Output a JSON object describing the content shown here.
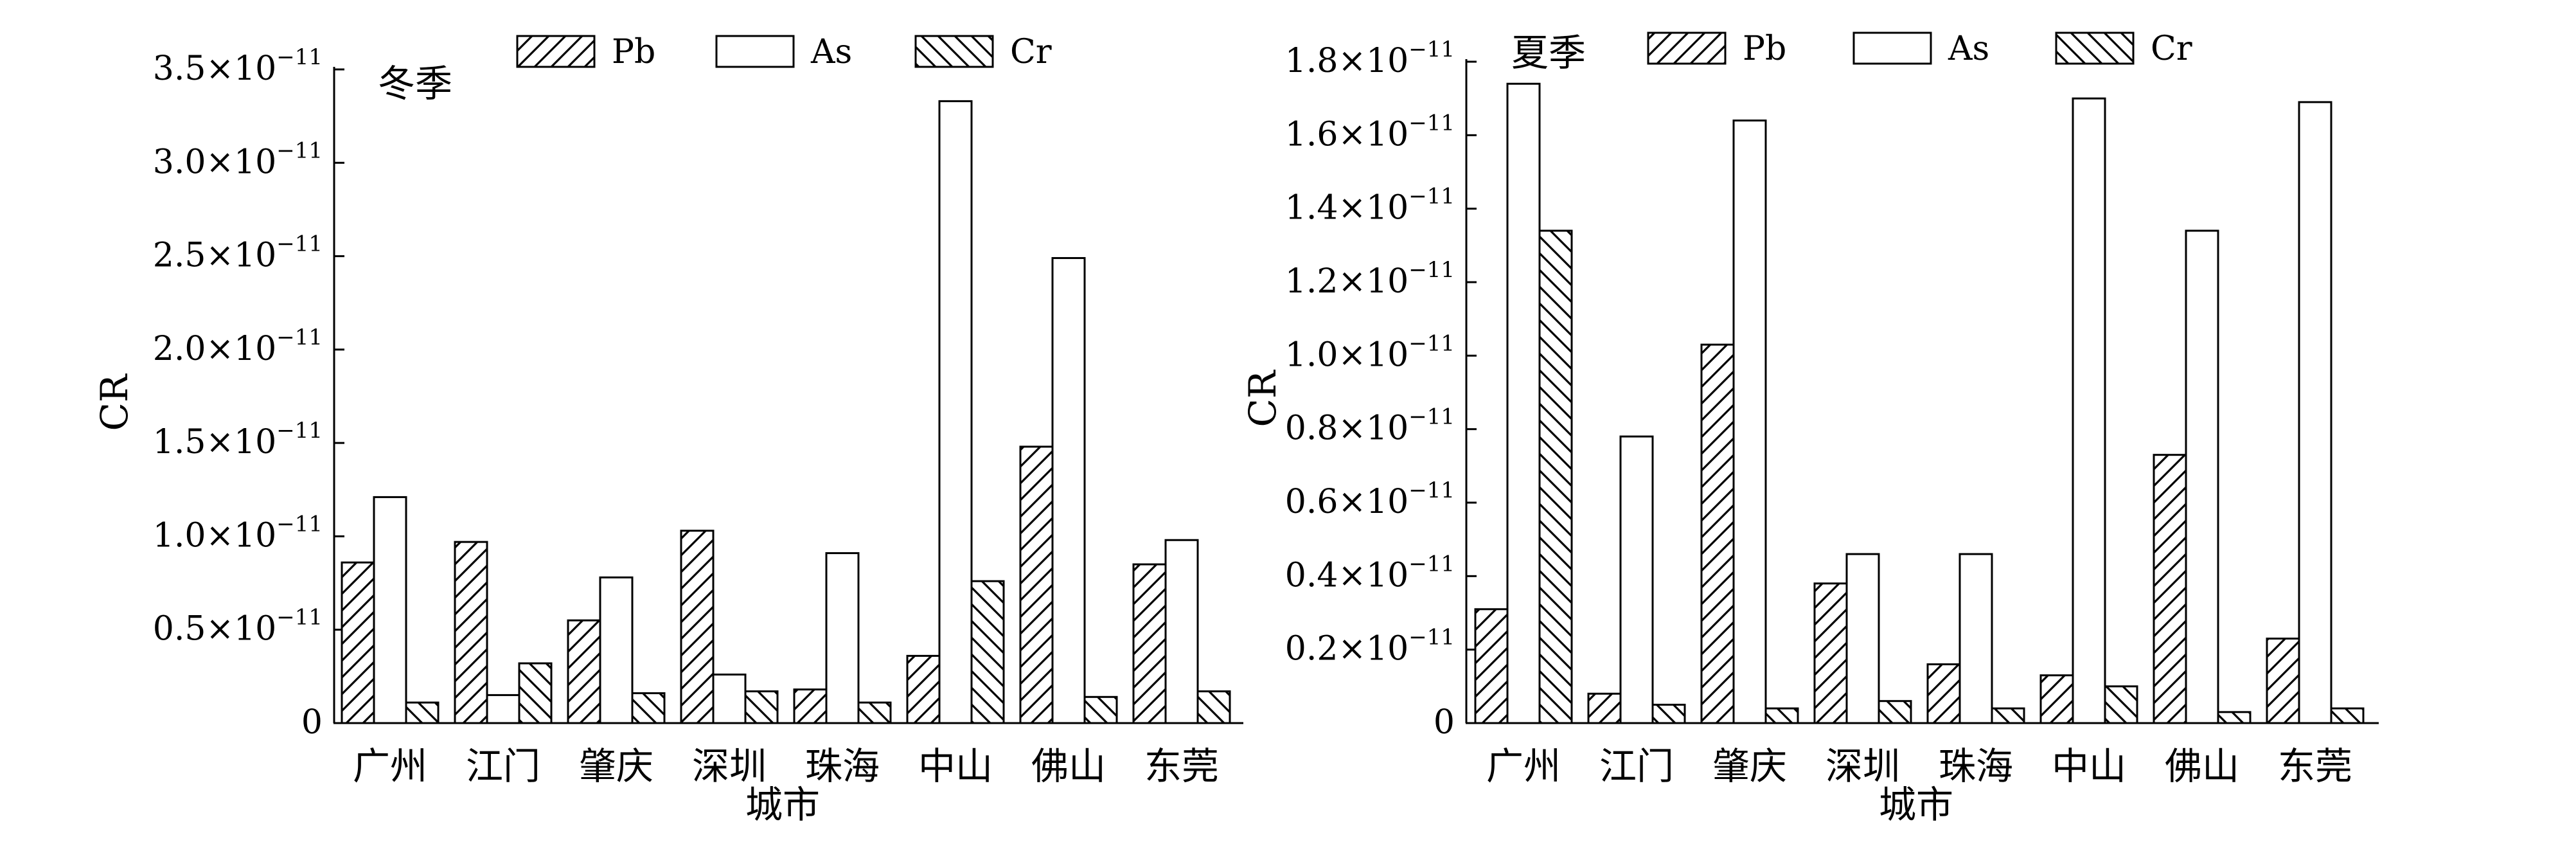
{
  "chart_data": [
    {
      "type": "bar",
      "title": "",
      "annotation": "冬季",
      "xlabel": "城市",
      "ylabel": "CR",
      "categories": [
        "广州",
        "江门",
        "肇庆",
        "深圳",
        "珠海",
        "中山",
        "佛山",
        "东莞"
      ],
      "ylim": [
        0,
        3.5
      ],
      "yticks": [
        0,
        0.5,
        1.0,
        1.5,
        2.0,
        2.5,
        3.0,
        3.5
      ],
      "ytick_labels": [
        {
          "mantissa": "0",
          "exp": ""
        },
        {
          "mantissa": "0.5×10",
          "exp": "−11"
        },
        {
          "mantissa": "1.0×10",
          "exp": "−11"
        },
        {
          "mantissa": "1.5×10",
          "exp": "−11"
        },
        {
          "mantissa": "2.0×10",
          "exp": "−11"
        },
        {
          "mantissa": "2.5×10",
          "exp": "−11"
        },
        {
          "mantissa": "3.0×10",
          "exp": "−11"
        },
        {
          "mantissa": "3.5×10",
          "exp": "−11"
        }
      ],
      "unit_note": "values ×10^-11",
      "series": [
        {
          "name": "Pb",
          "fill": "hatch-fwd",
          "values": [
            0.86,
            0.97,
            0.55,
            1.03,
            0.18,
            0.36,
            1.48,
            0.85
          ]
        },
        {
          "name": "As",
          "fill": "white",
          "values": [
            1.21,
            0.15,
            0.78,
            0.26,
            0.91,
            3.33,
            2.49,
            0.98
          ]
        },
        {
          "name": "Cr",
          "fill": "hatch-back",
          "values": [
            0.11,
            0.32,
            0.16,
            0.17,
            0.11,
            0.76,
            0.14,
            0.17
          ]
        }
      ],
      "legend_position": "top"
    },
    {
      "type": "bar",
      "title": "",
      "annotation": "夏季",
      "xlabel": "城市",
      "ylabel": "CR",
      "categories": [
        "广州",
        "江门",
        "肇庆",
        "深圳",
        "珠海",
        "中山",
        "佛山",
        "东莞"
      ],
      "ylim": [
        0,
        1.8
      ],
      "yticks": [
        0,
        0.2,
        0.4,
        0.6,
        0.8,
        1.0,
        1.2,
        1.4,
        1.6,
        1.8
      ],
      "ytick_labels": [
        {
          "mantissa": "0",
          "exp": ""
        },
        {
          "mantissa": "0.2×10",
          "exp": "−11"
        },
        {
          "mantissa": "0.4×10",
          "exp": "−11"
        },
        {
          "mantissa": "0.6×10",
          "exp": "−11"
        },
        {
          "mantissa": "0.8×10",
          "exp": "−11"
        },
        {
          "mantissa": "1.0×10",
          "exp": "−11"
        },
        {
          "mantissa": "1.2×10",
          "exp": "−11"
        },
        {
          "mantissa": "1.4×10",
          "exp": "−11"
        },
        {
          "mantissa": "1.6×10",
          "exp": "−11"
        },
        {
          "mantissa": "1.8×10",
          "exp": "−11"
        }
      ],
      "unit_note": "values ×10^-11",
      "series": [
        {
          "name": "Pb",
          "fill": "hatch-fwd",
          "values": [
            0.31,
            0.08,
            1.03,
            0.38,
            0.16,
            0.13,
            0.73,
            0.23
          ]
        },
        {
          "name": "As",
          "fill": "white",
          "values": [
            1.74,
            0.78,
            1.64,
            0.46,
            0.46,
            1.7,
            1.34,
            1.69
          ]
        },
        {
          "name": "Cr",
          "fill": "hatch-back",
          "values": [
            1.34,
            0.05,
            0.04,
            0.06,
            0.04,
            0.1,
            0.03,
            0.04
          ]
        }
      ],
      "legend_position": "top"
    }
  ]
}
